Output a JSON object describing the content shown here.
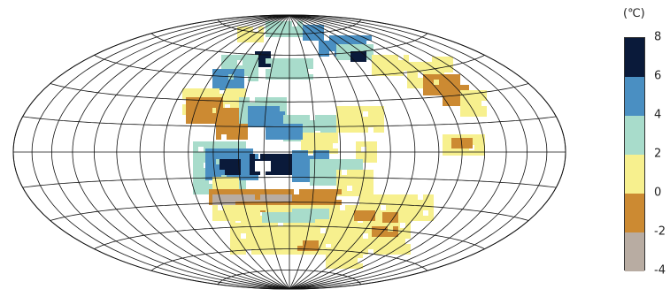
{
  "legend": {
    "unit": "(℃)",
    "ticks": [
      "8",
      "6",
      "4",
      "2",
      "0",
      "-2",
      "-4"
    ],
    "colors": [
      "#0a1a3a",
      "#4a8fc2",
      "#a8dccb",
      "#f7f08e",
      "#cc8a32",
      "#b8aca2"
    ]
  },
  "map": {
    "projection": "hammer-aitoff",
    "graticule_lines": 24,
    "cell_colors": {
      "very_warm": "#0a1a3a",
      "warm": "#4a8fc2",
      "mild": "#a8dccb",
      "neutral": "#f7f08e",
      "cool": "#cc8a32",
      "cold": "#b8aca2",
      "hole": "#ffffff"
    }
  }
}
